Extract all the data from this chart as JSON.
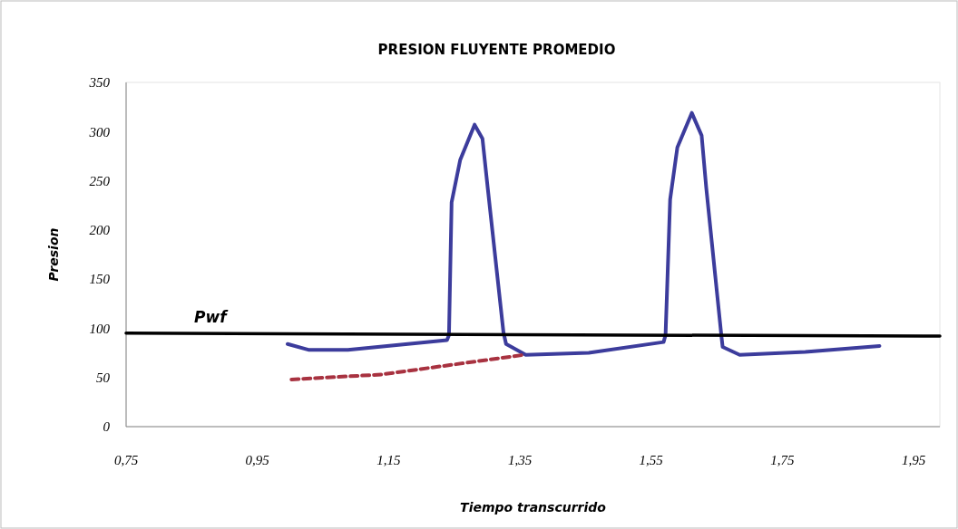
{
  "chart_data": {
    "type": "line",
    "title": "PRESION FLUYENTE PROMEDIO",
    "xlabel": "Tiempo transcurrido",
    "ylabel": "Presion",
    "xlim": [
      0.75,
      1.99
    ],
    "xticks": [
      {
        "value": 0.75,
        "label": "0,75"
      },
      {
        "value": 0.95,
        "label": "0,95"
      },
      {
        "value": 1.15,
        "label": "1,15"
      },
      {
        "value": 1.35,
        "label": "1,35"
      },
      {
        "value": 1.55,
        "label": "1,55"
      },
      {
        "value": 1.75,
        "label": "1,75"
      },
      {
        "value": 1.95,
        "label": "1,95"
      }
    ],
    "ylim": [
      0,
      350
    ],
    "yticks": [
      0,
      50,
      100,
      150,
      200,
      250,
      300,
      350
    ],
    "grid": false,
    "legend": false,
    "series": [
      {
        "color": "#3c3c9c",
        "line_style": "solid",
        "x": [
          0.996,
          1.029,
          1.088,
          1.239,
          1.242,
          1.246,
          1.259,
          1.281,
          1.293,
          1.301,
          1.325,
          1.329,
          1.359,
          1.455,
          1.569,
          1.572,
          1.579,
          1.59,
          1.612,
          1.627,
          1.634,
          1.657,
          1.659,
          1.685,
          1.785,
          1.898
        ],
        "values": [
          84,
          78,
          78,
          88,
          93,
          228,
          271,
          307,
          293,
          243,
          96,
          84,
          73,
          75,
          86,
          93,
          231,
          284,
          319,
          296,
          243,
          93,
          81,
          73,
          76,
          82
        ]
      },
      {
        "name": "Pwf",
        "color": "#000000",
        "line_style": "solid",
        "x": [
          0.75,
          1.99
        ],
        "values": [
          95,
          92
        ]
      },
      {
        "color": "#a83240",
        "line_style": "dashed",
        "x": [
          1.002,
          1.139,
          1.356
        ],
        "values": [
          48,
          53,
          73
        ]
      }
    ]
  }
}
